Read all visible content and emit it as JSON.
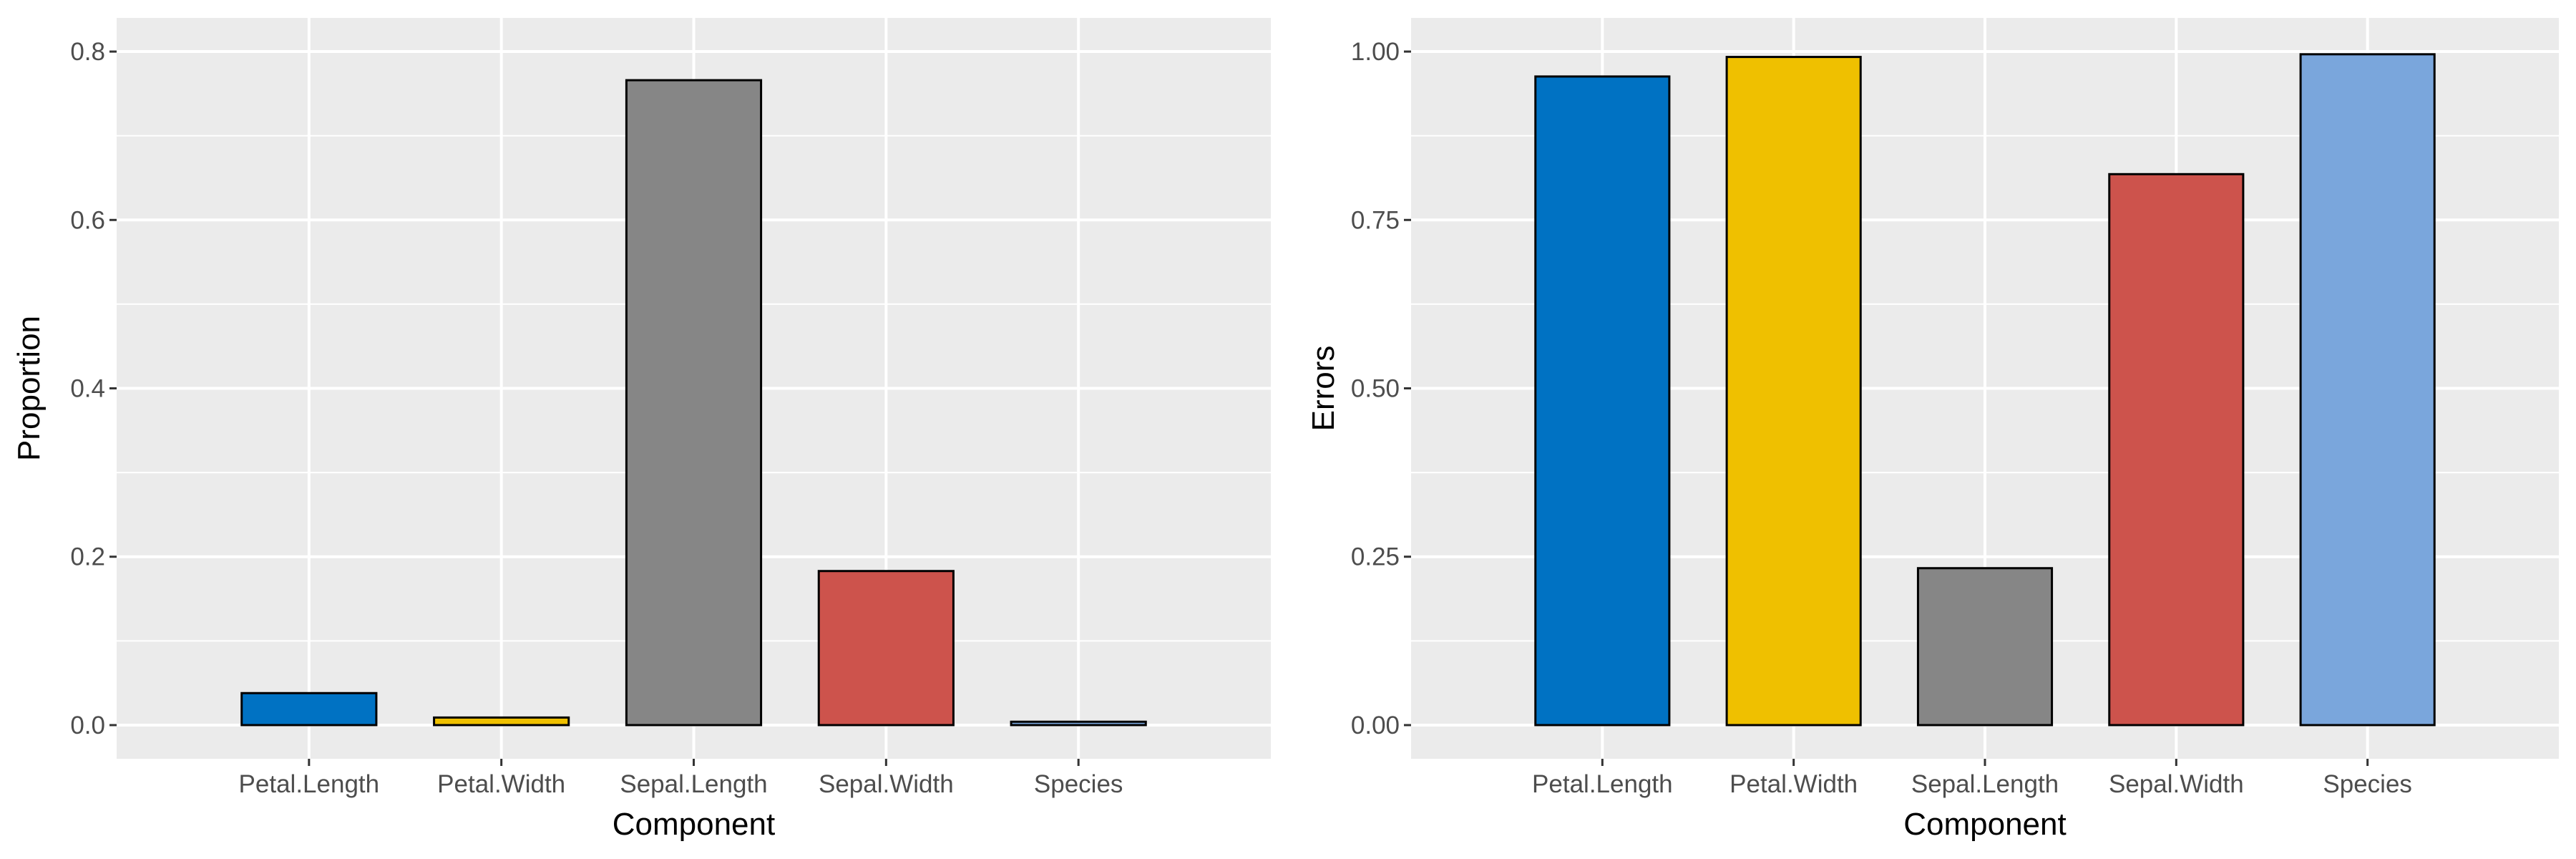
{
  "chart_data": [
    {
      "type": "bar",
      "title": "",
      "xlabel": "Component",
      "ylabel": "Proportion",
      "categories": [
        "Petal.Length",
        "Petal.Width",
        "Sepal.Length",
        "Sepal.Width",
        "Species"
      ],
      "values": [
        0.038,
        0.009,
        0.766,
        0.183,
        0.004
      ],
      "colors": [
        "#0072C3",
        "#EFC000",
        "#868686",
        "#CD534C",
        "#7AA6DC"
      ],
      "ylim": [
        0,
        0.8
      ],
      "yticks": [
        0.0,
        0.2,
        0.4,
        0.6,
        0.8
      ],
      "ytick_labels": [
        "0.0",
        "0.2",
        "0.4",
        "0.6",
        "0.8"
      ],
      "grid": true,
      "legend": "none"
    },
    {
      "type": "bar",
      "title": "",
      "xlabel": "Component",
      "ylabel": "Errors",
      "categories": [
        "Petal.Length",
        "Petal.Width",
        "Sepal.Length",
        "Sepal.Width",
        "Species"
      ],
      "values": [
        0.963,
        0.992,
        0.233,
        0.818,
        0.996
      ],
      "colors": [
        "#0072C3",
        "#EFC000",
        "#868686",
        "#CD534C",
        "#7AA6DC"
      ],
      "ylim": [
        0,
        1.0
      ],
      "yticks": [
        0.0,
        0.25,
        0.5,
        0.75,
        1.0
      ],
      "ytick_labels": [
        "0.00",
        "0.25",
        "0.50",
        "0.75",
        "1.00"
      ],
      "grid": true,
      "legend": "none"
    }
  ],
  "theme": {
    "panel_background": "#EBEBEB",
    "grid_color": "#FFFFFF",
    "bar_outline": "#000000",
    "tick_color": "#333333"
  }
}
